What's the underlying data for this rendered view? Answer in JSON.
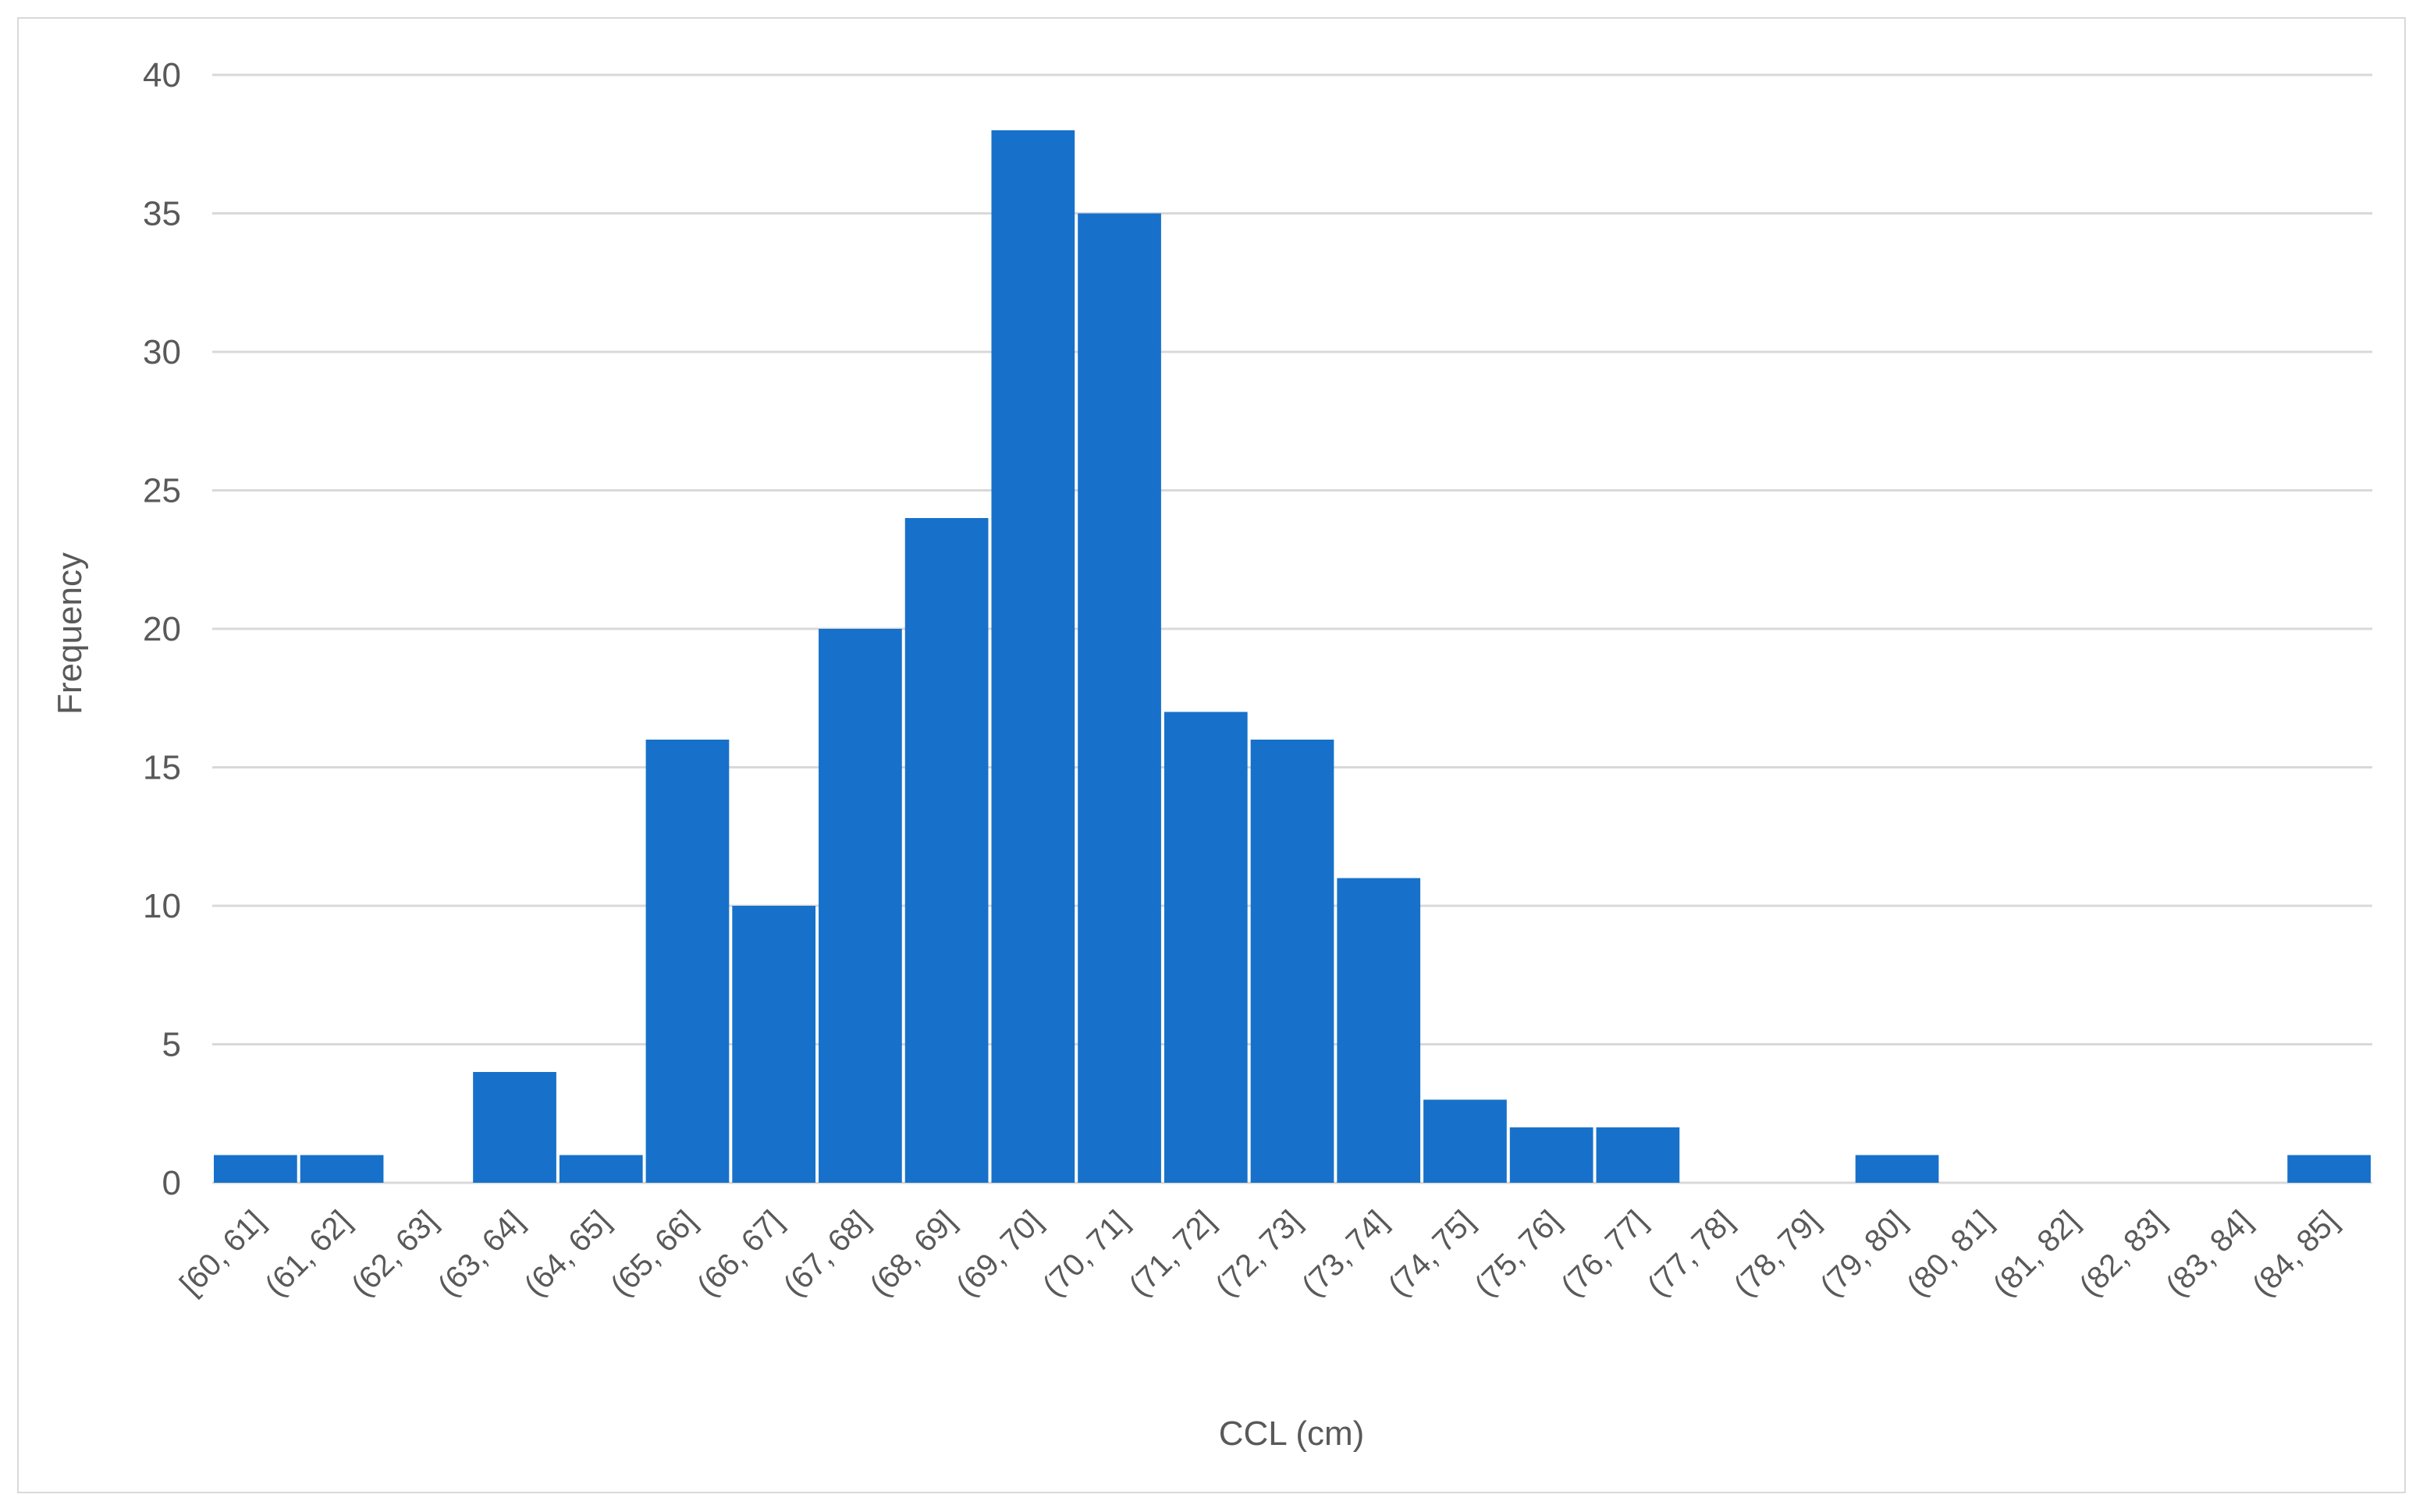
{
  "chart_data": {
    "type": "bar",
    "title": "",
    "xlabel": "CCL (cm)",
    "ylabel": "Frequency",
    "ylim": [
      0,
      40
    ],
    "yticks": [
      "0",
      "5",
      "10",
      "15",
      "20",
      "25",
      "30",
      "35",
      "40"
    ],
    "grid": true,
    "legend": "none",
    "categories": [
      "[60, 61]",
      "(61, 62]",
      "(62, 63]",
      "(63, 64]",
      "(64, 65]",
      "(65, 66]",
      "(66, 67]",
      "(67, 68]",
      "(68, 69]",
      "(69, 70]",
      "(70, 71]",
      "(71, 72]",
      "(72, 73]",
      "(73, 74]",
      "(74, 75]",
      "(75, 76]",
      "(76, 77]",
      "(77, 78]",
      "(78, 79]",
      "(79, 80]",
      "(80, 81]",
      "(81, 82]",
      "(82, 83]",
      "(83, 84]",
      "(84, 85]"
    ],
    "values": [
      1,
      1,
      0,
      4,
      1,
      16,
      10,
      20,
      24,
      38,
      35,
      17,
      16,
      11,
      3,
      2,
      2,
      0,
      0,
      1,
      0,
      0,
      0,
      0,
      1
    ],
    "colors": {
      "bar": "#1771CA",
      "grid": "#d9d9d9",
      "text": "#595959"
    }
  }
}
